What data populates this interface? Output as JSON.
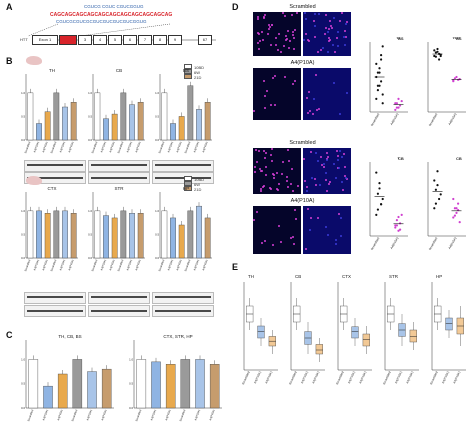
{
  "panels": {
    "A": {
      "label": "A",
      "sequence_top": "CGUCG CGUC CGUCGGUG",
      "sequence_main": "CAGCAGCAGCAGCAGCAGCAGCAGCAGCAGCAG",
      "sequence_sub": "CGUCGCGUCGCGUCGUCGUCGUCGGUG",
      "gene_label": "HTT",
      "exons": [
        "Exon 1",
        "2",
        "3",
        "4",
        "5",
        "6",
        "7",
        "8",
        "9",
        "67"
      ]
    },
    "B": {
      "label": "B",
      "legend": [
        "10BD",
        "6W",
        "21D"
      ],
      "regions_top": [
        "TH",
        "CB",
        "BS"
      ],
      "regions_bottom": [
        "CTX",
        "STR",
        "HP"
      ],
      "ylabel": "HTT level change (normalized)",
      "xcats": [
        "Scrambled",
        "A4(P10A)",
        "A4(P10A)",
        "Scrambled",
        "A4(P10A)",
        "A4(P10A)"
      ]
    },
    "C": {
      "label": "C",
      "groups": [
        "TH, CB, BS",
        "CTX, STR, HP"
      ],
      "legend": [
        "10BD",
        "6W",
        "21D"
      ]
    },
    "D": {
      "label": "D",
      "image_labels": [
        "Scrambled",
        "A4(P10A)",
        "Scrambled",
        "A4(P10A)"
      ],
      "region_tags": [
        "BS",
        "BS",
        "CB",
        "CB"
      ],
      "ylabel_surface": "HTT aggregate surface [% of DAPI area]",
      "ylabel_density": "HTT aggregate density [mean intensity]",
      "xcats": [
        "Scrambled",
        "A4(P10A)"
      ],
      "sig": [
        "**",
        "****",
        "*",
        ""
      ]
    },
    "E": {
      "label": "E",
      "regions": [
        "TH",
        "CB",
        "CTX",
        "STR",
        "HP"
      ],
      "ylabel": "Relative HTT expression",
      "xcats": [
        "Scrambled",
        "A4(P10A)",
        "A4(P10A)"
      ]
    }
  },
  "chart_data": [
    {
      "type": "bar",
      "title": "TH",
      "categories": [
        "Scrambled",
        "A4(P10A)",
        "A4(P10A)",
        "Scrambled",
        "A4(P10A)",
        "A4(P10A)"
      ],
      "values": [
        1.0,
        0.35,
        0.6,
        1.0,
        0.7,
        0.8
      ]
    },
    {
      "type": "bar",
      "title": "CB",
      "categories": [
        "Scrambled",
        "A4(P10A)",
        "A4(P10A)",
        "Scrambled",
        "A4(P10A)",
        "A4(P10A)"
      ],
      "values": [
        1.0,
        0.45,
        0.55,
        1.0,
        0.75,
        0.8
      ]
    },
    {
      "type": "bar",
      "title": "BS",
      "categories": [
        "Scrambled",
        "A4(P10A)",
        "A4(P10A)",
        "Scrambled",
        "A4(P10A)",
        "A4(P10A)"
      ],
      "values": [
        1.0,
        0.35,
        0.5,
        1.15,
        0.65,
        0.8
      ]
    },
    {
      "type": "bar",
      "title": "CTX",
      "categories": [
        "Scrambled",
        "A4(P10A)",
        "A4(P10A)",
        "Scrambled",
        "A4(P10A)",
        "A4(P10A)"
      ],
      "values": [
        1.0,
        1.0,
        0.95,
        1.0,
        1.0,
        0.95
      ]
    },
    {
      "type": "bar",
      "title": "STR",
      "categories": [
        "Scrambled",
        "A4(P10A)",
        "A4(P10A)",
        "Scrambled",
        "A4(P10A)",
        "A4(P10A)"
      ],
      "values": [
        1.0,
        0.9,
        0.85,
        1.0,
        0.95,
        0.95
      ]
    },
    {
      "type": "bar",
      "title": "HP",
      "categories": [
        "Scrambled",
        "A4(P10A)",
        "A4(P10A)",
        "Scrambled",
        "A4(P10A)",
        "A4(P10A)"
      ],
      "values": [
        1.0,
        0.85,
        0.7,
        1.0,
        1.1,
        0.85
      ]
    },
    {
      "type": "bar",
      "title": "TH, CB, BS",
      "categories": [
        "Scrambled",
        "A4(P10A)",
        "A4(P10A)",
        "Scrambled",
        "A4(P10A)",
        "A4(P10A)"
      ],
      "values": [
        1.0,
        0.45,
        0.7,
        1.0,
        0.75,
        0.8
      ]
    },
    {
      "type": "bar",
      "title": "CTX, STR, HP",
      "categories": [
        "Scrambled",
        "A4(P10A)",
        "A4(P10A)",
        "Scrambled",
        "A4(P10A)",
        "A4(P10A)"
      ],
      "values": [
        1.0,
        0.95,
        0.9,
        1.0,
        1.0,
        0.9
      ]
    },
    {
      "type": "scatter",
      "title": "BS surface",
      "categories": [
        "Scrambled",
        "A4(P10A)"
      ],
      "values": [
        [
          0.3,
          0.6,
          0.9,
          1.2,
          1.5,
          0.8,
          0.5,
          1.0,
          0.7,
          0.4,
          1.1,
          0.9,
          0.6,
          1.3,
          0.2
        ],
        [
          0.2,
          0.1,
          0.3,
          0.15,
          0.25,
          0.05,
          0.2,
          0.1
        ]
      ]
    },
    {
      "type": "scatter",
      "title": "BS density",
      "categories": [
        "Scrambled",
        "A4(P10A)"
      ],
      "values": [
        [
          0.8,
          0.85,
          0.9,
          0.75,
          0.82,
          0.88,
          0.79,
          0.86,
          0.83,
          0.8
        ],
        [
          0.45,
          0.48,
          0.5,
          0.46,
          0.47,
          0.44
        ]
      ]
    },
    {
      "type": "scatter",
      "title": "CB surface",
      "categories": [
        "Scrambled",
        "A4(P10A)"
      ],
      "values": [
        [
          0.2,
          0.4,
          0.5,
          0.3,
          0.35,
          0.6,
          0.25,
          0.45,
          0.3
        ],
        [
          0.1,
          0.15,
          0.05,
          0.12,
          0.2,
          0.08,
          0.1,
          0.18,
          0.06
        ]
      ]
    },
    {
      "type": "scatter",
      "title": "CB density",
      "categories": [
        "Scrambled",
        "A4(P10A)"
      ],
      "values": [
        [
          0.3,
          0.5,
          0.7,
          0.4,
          0.45,
          0.6,
          0.35,
          0.55
        ],
        [
          0.2,
          0.3,
          0.25,
          0.35,
          0.15,
          0.4,
          0.22,
          0.3,
          0.28
        ]
      ]
    },
    {
      "type": "box",
      "title": "TH",
      "categories": [
        "Scrambled",
        "A4(P10A)",
        "A4(P10A)"
      ],
      "values": [
        [
          0.8,
          0.9,
          1.0,
          1.1,
          1.2
        ],
        [
          0.6,
          0.7,
          0.78,
          0.85,
          0.95
        ],
        [
          0.5,
          0.6,
          0.66,
          0.72,
          0.8
        ]
      ]
    },
    {
      "type": "box",
      "title": "CB",
      "categories": [
        "Scrambled",
        "A4(P10A)",
        "A4(P10A)"
      ],
      "values": [
        [
          0.8,
          0.9,
          1.0,
          1.1,
          1.2
        ],
        [
          0.5,
          0.62,
          0.7,
          0.78,
          0.9
        ],
        [
          0.4,
          0.5,
          0.55,
          0.62,
          0.7
        ]
      ]
    },
    {
      "type": "box",
      "title": "CTX",
      "categories": [
        "Scrambled",
        "A4(P10A)",
        "A4(P10A)"
      ],
      "values": [
        [
          0.8,
          0.9,
          1.0,
          1.1,
          1.2
        ],
        [
          0.6,
          0.7,
          0.78,
          0.84,
          0.95
        ],
        [
          0.5,
          0.6,
          0.68,
          0.75,
          0.85
        ]
      ]
    },
    {
      "type": "box",
      "title": "STR",
      "categories": [
        "Scrambled",
        "A4(P10A)",
        "A4(P10A)"
      ],
      "values": [
        [
          0.8,
          0.9,
          1.0,
          1.1,
          1.2
        ],
        [
          0.6,
          0.72,
          0.8,
          0.88,
          1.0
        ],
        [
          0.55,
          0.65,
          0.72,
          0.8,
          0.9
        ]
      ]
    },
    {
      "type": "box",
      "title": "HP",
      "categories": [
        "Scrambled",
        "A4(P10A)",
        "A4(P10A)"
      ],
      "values": [
        [
          0.8,
          0.9,
          1.0,
          1.1,
          1.2
        ],
        [
          0.7,
          0.8,
          0.88,
          0.95,
          1.05
        ],
        [
          0.6,
          0.75,
          0.85,
          0.95,
          1.1
        ]
      ]
    }
  ]
}
